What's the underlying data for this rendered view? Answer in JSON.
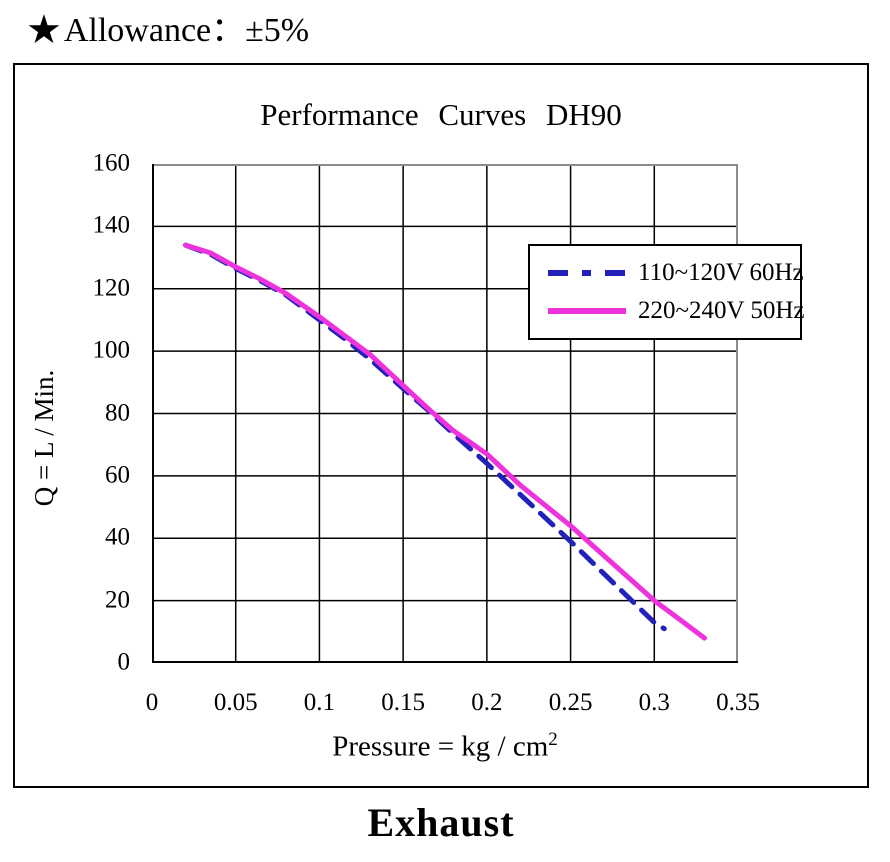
{
  "page": {
    "allowance_marker": "★",
    "allowance_text": "Allowance：±5%",
    "footer_label": "Exhaust"
  },
  "chart_data": {
    "type": "line",
    "title": "Performance Curves DH90",
    "xlabel": "Pressure = kg / cm",
    "xlabel_superscript": "2",
    "ylabel": "Q = L / Min.",
    "xlim": [
      0,
      0.35
    ],
    "ylim": [
      0,
      160
    ],
    "grid": "on",
    "legend_position": "upper-right-inside",
    "axis_color": "#000000",
    "outer_plot_border_color": "#8c8c8c",
    "xticks": {
      "values": [
        0,
        0.05,
        0.1,
        0.15,
        0.2,
        0.25,
        0.3,
        0.35
      ],
      "labels": [
        "0",
        "0.05",
        "0.1",
        "0.15",
        "0.2",
        "0.25",
        "0.3",
        "0.35"
      ]
    },
    "yticks": {
      "values": [
        0,
        20,
        40,
        60,
        80,
        100,
        120,
        140,
        160
      ],
      "labels": [
        "0",
        "20",
        "40",
        "60",
        "80",
        "100",
        "120",
        "140",
        "160"
      ]
    },
    "series": [
      {
        "name": "110~120V 60Hz",
        "color": "#2222bb",
        "style": "dashed",
        "points": [
          [
            0.02,
            134
          ],
          [
            0.035,
            131
          ],
          [
            0.05,
            126.5
          ],
          [
            0.065,
            122.5
          ],
          [
            0.08,
            118
          ],
          [
            0.1,
            110
          ],
          [
            0.115,
            104
          ],
          [
            0.13,
            97.5
          ],
          [
            0.15,
            88
          ],
          [
            0.165,
            81
          ],
          [
            0.18,
            73.5
          ],
          [
            0.2,
            64
          ],
          [
            0.22,
            54
          ],
          [
            0.25,
            39
          ],
          [
            0.275,
            26
          ],
          [
            0.3,
            13
          ],
          [
            0.306,
            11
          ]
        ]
      },
      {
        "name": "220~240V 50Hz",
        "color": "#ee33dd",
        "style": "solid",
        "points": [
          [
            0.02,
            134
          ],
          [
            0.035,
            131.5
          ],
          [
            0.05,
            127
          ],
          [
            0.065,
            123
          ],
          [
            0.08,
            118.5
          ],
          [
            0.1,
            111
          ],
          [
            0.115,
            105
          ],
          [
            0.13,
            99
          ],
          [
            0.15,
            89
          ],
          [
            0.165,
            81.5
          ],
          [
            0.18,
            74.5
          ],
          [
            0.2,
            67
          ],
          [
            0.22,
            57
          ],
          [
            0.25,
            44
          ],
          [
            0.275,
            32
          ],
          [
            0.3,
            20
          ],
          [
            0.315,
            14
          ],
          [
            0.33,
            8
          ]
        ]
      }
    ]
  }
}
